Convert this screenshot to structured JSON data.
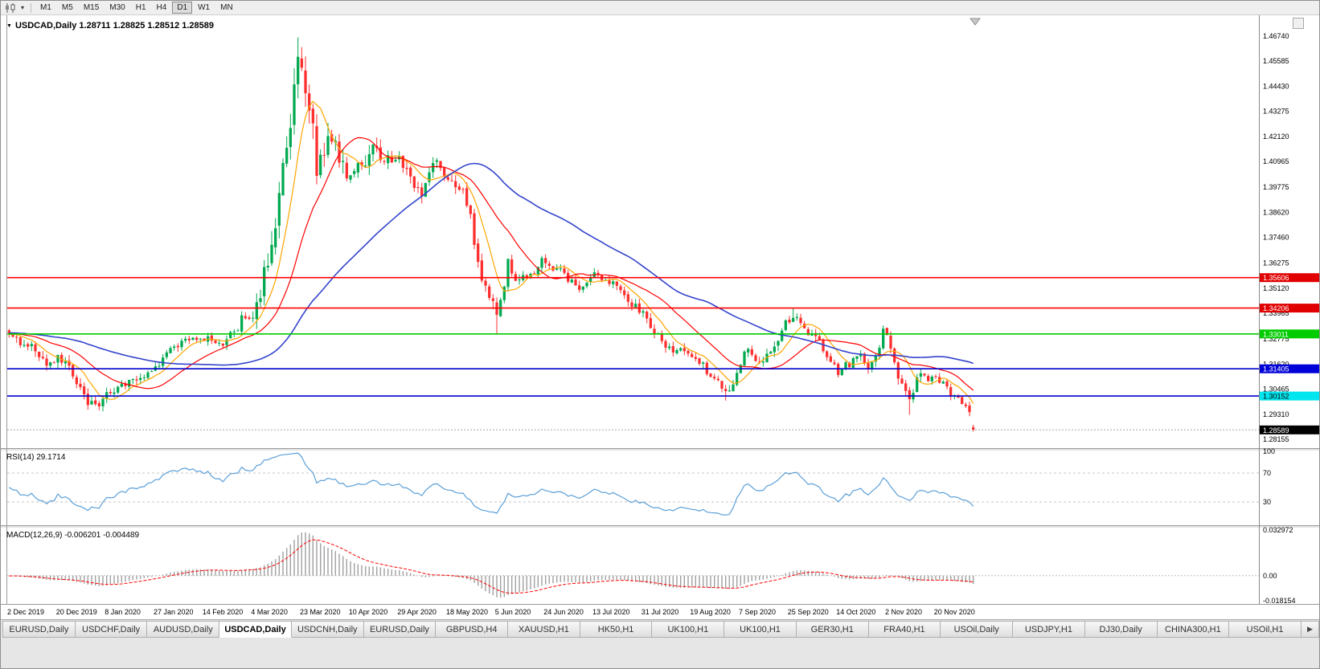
{
  "toolbar": {
    "timeframes": [
      {
        "label": "M1",
        "active": false
      },
      {
        "label": "M5",
        "active": false
      },
      {
        "label": "M15",
        "active": false
      },
      {
        "label": "M30",
        "active": false
      },
      {
        "label": "H1",
        "active": false
      },
      {
        "label": "H4",
        "active": false
      },
      {
        "label": "D1",
        "active": true
      },
      {
        "label": "W1",
        "active": false
      },
      {
        "label": "MN",
        "active": false
      }
    ]
  },
  "chart": {
    "title_marker": "▼",
    "title": "USDCAD,Daily 1.28711 1.28825 1.28512 1.28589"
  },
  "indicators": {
    "rsi_label": "RSI(14) 29.1714",
    "macd_label": "MACD(12,26,9) -0.006201 -0.004489"
  },
  "chart_data": {
    "type": "candlestick",
    "symbol": "USDCAD",
    "period": "Daily",
    "last_ohlc": {
      "open": 1.28711,
      "high": 1.28825,
      "low": 1.28512,
      "close": 1.28589
    },
    "price_axis": {
      "view_min": 1.27785,
      "view_max": 1.47554,
      "ticks": [
        "1.46740",
        "1.45585",
        "1.44430",
        "1.43275",
        "1.42120",
        "1.40965",
        "1.39775",
        "1.38620",
        "1.37460",
        "1.36275",
        "1.35120",
        "1.33965",
        "1.32775",
        "1.31620",
        "1.30465",
        "1.29310",
        "1.28155"
      ]
    },
    "time_axis": {
      "candles_per_label": 13,
      "labels": [
        "2 Dec 2019",
        "20 Dec 2019",
        "8 Jan 2020",
        "27 Jan 2020",
        "14 Feb 2020",
        "4 Mar 2020",
        "23 Mar 2020",
        "10 Apr 2020",
        "29 Apr 2020",
        "18 May 2020",
        "5 Jun 2020",
        "24 Jun 2020",
        "13 Jul 2020",
        "31 Jul 2020",
        "19 Aug 2020",
        "7 Sep 2020",
        "25 Sep 2020",
        "14 Oct 2020",
        "2 Nov 2020",
        "20 Nov 2020"
      ]
    },
    "num_candles": 258,
    "close_anchors": [
      [
        0,
        1.3295
      ],
      [
        5,
        1.3255
      ],
      [
        10,
        1.3172
      ],
      [
        14,
        1.3185
      ],
      [
        18,
        1.309
      ],
      [
        21,
        1.2972
      ],
      [
        24,
        1.2988
      ],
      [
        28,
        1.304
      ],
      [
        33,
        1.308
      ],
      [
        38,
        1.3118
      ],
      [
        43,
        1.323
      ],
      [
        48,
        1.327
      ],
      [
        53,
        1.3288
      ],
      [
        57,
        1.3262
      ],
      [
        60,
        1.3305
      ],
      [
        63,
        1.3392
      ],
      [
        66,
        1.3415
      ],
      [
        69,
        1.366
      ],
      [
        72,
        1.393
      ],
      [
        75,
        1.428
      ],
      [
        77,
        1.451
      ],
      [
        79,
        1.446
      ],
      [
        82,
        1.408
      ],
      [
        84,
        1.415
      ],
      [
        86,
        1.423
      ],
      [
        88,
        1.409
      ],
      [
        91,
        1.403
      ],
      [
        94,
        1.408
      ],
      [
        97,
        1.417
      ],
      [
        100,
        1.409
      ],
      [
        103,
        1.4105
      ],
      [
        106,
        1.408
      ],
      [
        110,
        1.393
      ],
      [
        113,
        1.409
      ],
      [
        117,
        1.403
      ],
      [
        120,
        1.3985
      ],
      [
        123,
        1.388
      ],
      [
        125,
        1.36
      ],
      [
        128,
        1.3495
      ],
      [
        130,
        1.339
      ],
      [
        133,
        1.362
      ],
      [
        136,
        1.3545
      ],
      [
        139,
        1.356
      ],
      [
        142,
        1.364
      ],
      [
        145,
        1.36
      ],
      [
        148,
        1.3575
      ],
      [
        152,
        1.3515
      ],
      [
        155,
        1.3575
      ],
      [
        158,
        1.3555
      ],
      [
        161,
        1.3535
      ],
      [
        164,
        1.3465
      ],
      [
        168,
        1.3415
      ],
      [
        171,
        1.333
      ],
      [
        175,
        1.3255
      ],
      [
        178,
        1.3225
      ],
      [
        181,
        1.3205
      ],
      [
        184,
        1.318
      ],
      [
        187,
        1.3105
      ],
      [
        190,
        1.3055
      ],
      [
        192,
        1.3045
      ],
      [
        195,
        1.318
      ],
      [
        197,
        1.3235
      ],
      [
        200,
        1.3165
      ],
      [
        203,
        1.3215
      ],
      [
        206,
        1.332
      ],
      [
        209,
        1.3395
      ],
      [
        211,
        1.335
      ],
      [
        213,
        1.3295
      ],
      [
        216,
        1.3265
      ],
      [
        219,
        1.3175
      ],
      [
        221,
        1.3125
      ],
      [
        224,
        1.3165
      ],
      [
        227,
        1.32
      ],
      [
        229,
        1.3135
      ],
      [
        231,
        1.318
      ],
      [
        233,
        1.3325
      ],
      [
        235,
        1.3255
      ],
      [
        236,
        1.3155
      ],
      [
        238,
        1.3065
      ],
      [
        240,
        1.2995
      ],
      [
        243,
        1.313
      ],
      [
        246,
        1.3085
      ],
      [
        249,
        1.3092
      ],
      [
        251,
        1.3015
      ],
      [
        253,
        1.2992
      ],
      [
        255,
        1.2955
      ],
      [
        256,
        1.293
      ],
      [
        257,
        1.2859
      ]
    ],
    "volatility_anchors": [
      [
        0,
        0.0042
      ],
      [
        15,
        0.0048
      ],
      [
        25,
        0.004
      ],
      [
        40,
        0.0034
      ],
      [
        55,
        0.0038
      ],
      [
        62,
        0.0055
      ],
      [
        66,
        0.0085
      ],
      [
        70,
        0.012
      ],
      [
        76,
        0.014
      ],
      [
        82,
        0.013
      ],
      [
        88,
        0.01
      ],
      [
        95,
        0.008
      ],
      [
        102,
        0.007
      ],
      [
        110,
        0.0062
      ],
      [
        118,
        0.0052
      ],
      [
        124,
        0.0068
      ],
      [
        130,
        0.0066
      ],
      [
        136,
        0.005
      ],
      [
        145,
        0.0042
      ],
      [
        155,
        0.0038
      ],
      [
        165,
        0.004
      ],
      [
        175,
        0.004
      ],
      [
        185,
        0.0042
      ],
      [
        192,
        0.0046
      ],
      [
        200,
        0.004
      ],
      [
        207,
        0.0044
      ],
      [
        215,
        0.004
      ],
      [
        222,
        0.0038
      ],
      [
        228,
        0.0038
      ],
      [
        233,
        0.0046
      ],
      [
        238,
        0.005
      ],
      [
        242,
        0.0046
      ],
      [
        248,
        0.0038
      ],
      [
        253,
        0.0036
      ],
      [
        257,
        0.003
      ]
    ],
    "forced_points": [
      {
        "i": 77,
        "high": 1.4668
      },
      {
        "i": 21,
        "low": 1.2952
      },
      {
        "i": 130,
        "low": 1.3302
      },
      {
        "i": 191,
        "low": 1.2994
      },
      {
        "i": 209,
        "high": 1.3421
      },
      {
        "i": 233,
        "high": 1.334
      },
      {
        "i": 240,
        "low": 1.2928
      }
    ],
    "colors": {
      "up": "#00A94F",
      "down": "#FF2E2E",
      "ma_fast": "#FFA500",
      "ma_mid": "#FF0000",
      "ma_slow": "#3344CC",
      "rsi": "#5B9FD8",
      "macd_hist": "#A0A0A0",
      "macd_signal": "#FF0000"
    },
    "moving_averages": [
      {
        "period": 8,
        "color_key": "ma_fast"
      },
      {
        "period": 21,
        "color_key": "ma_mid"
      },
      {
        "period": 55,
        "color_key": "ma_slow"
      }
    ],
    "hlines": [
      {
        "price": 1.35606,
        "label": "1.35606",
        "line": "#FF0000",
        "badge_bg": "#E00000",
        "badge_fg": "#FFFFFF"
      },
      {
        "price": 1.34206,
        "label": "1.34206",
        "line": "#FF0000",
        "badge_bg": "#E00000",
        "badge_fg": "#FFFFFF"
      },
      {
        "price": 1.33011,
        "label": "1.33011",
        "line": "#00CC00",
        "badge_bg": "#00CC00",
        "badge_fg": "#FFFFFF"
      },
      {
        "price": 1.31405,
        "label": "1.31405",
        "line": "#0000CC",
        "badge_bg": "#0000D8",
        "badge_fg": "#FFFFFF"
      },
      {
        "price": 1.30152,
        "label": "1.30152",
        "line": "#0000CC",
        "badge_bg": "#00E5EE",
        "badge_fg": "#000000"
      }
    ],
    "bid": {
      "price": 1.28589,
      "label": "1.28589",
      "badge_bg": "#000000",
      "badge_fg": "#FFFFFF"
    },
    "rsi": {
      "period": 14,
      "value": 29.1714,
      "levels": [
        70,
        30
      ],
      "axis_labels": [
        "100",
        "70",
        "30"
      ],
      "range": [
        0,
        100
      ]
    },
    "macd": {
      "fast": 12,
      "slow": 26,
      "signal": 9,
      "value": -0.006201,
      "signal_value": -0.004489,
      "axis_labels": {
        "top": "0.032972",
        "zero": "0.00",
        "bottom": "-0.018154"
      },
      "range": [
        -0.018154,
        0.032972
      ]
    }
  },
  "tabbar": {
    "scroll_right_icon": "▶",
    "tabs": [
      {
        "label": "EURUSD,Daily",
        "active": false
      },
      {
        "label": "USDCHF,Daily",
        "active": false
      },
      {
        "label": "AUDUSD,Daily",
        "active": false
      },
      {
        "label": "USDCAD,Daily",
        "active": true
      },
      {
        "label": "USDCNH,Daily",
        "active": false
      },
      {
        "label": "EURUSD,Daily",
        "active": false
      },
      {
        "label": "GBPUSD,H4",
        "active": false
      },
      {
        "label": "XAUUSD,H1",
        "active": false
      },
      {
        "label": "HK50,H1",
        "active": false
      },
      {
        "label": "UK100,H1",
        "active": false
      },
      {
        "label": "UK100,H1",
        "active": false
      },
      {
        "label": "GER30,H1",
        "active": false
      },
      {
        "label": "FRA40,H1",
        "active": false
      },
      {
        "label": "USOil,Daily",
        "active": false
      },
      {
        "label": "USDJPY,H1",
        "active": false
      },
      {
        "label": "DJ30,Daily",
        "active": false
      },
      {
        "label": "CHINA300,H1",
        "active": false
      },
      {
        "label": "USOil,H1",
        "active": false
      }
    ]
  }
}
